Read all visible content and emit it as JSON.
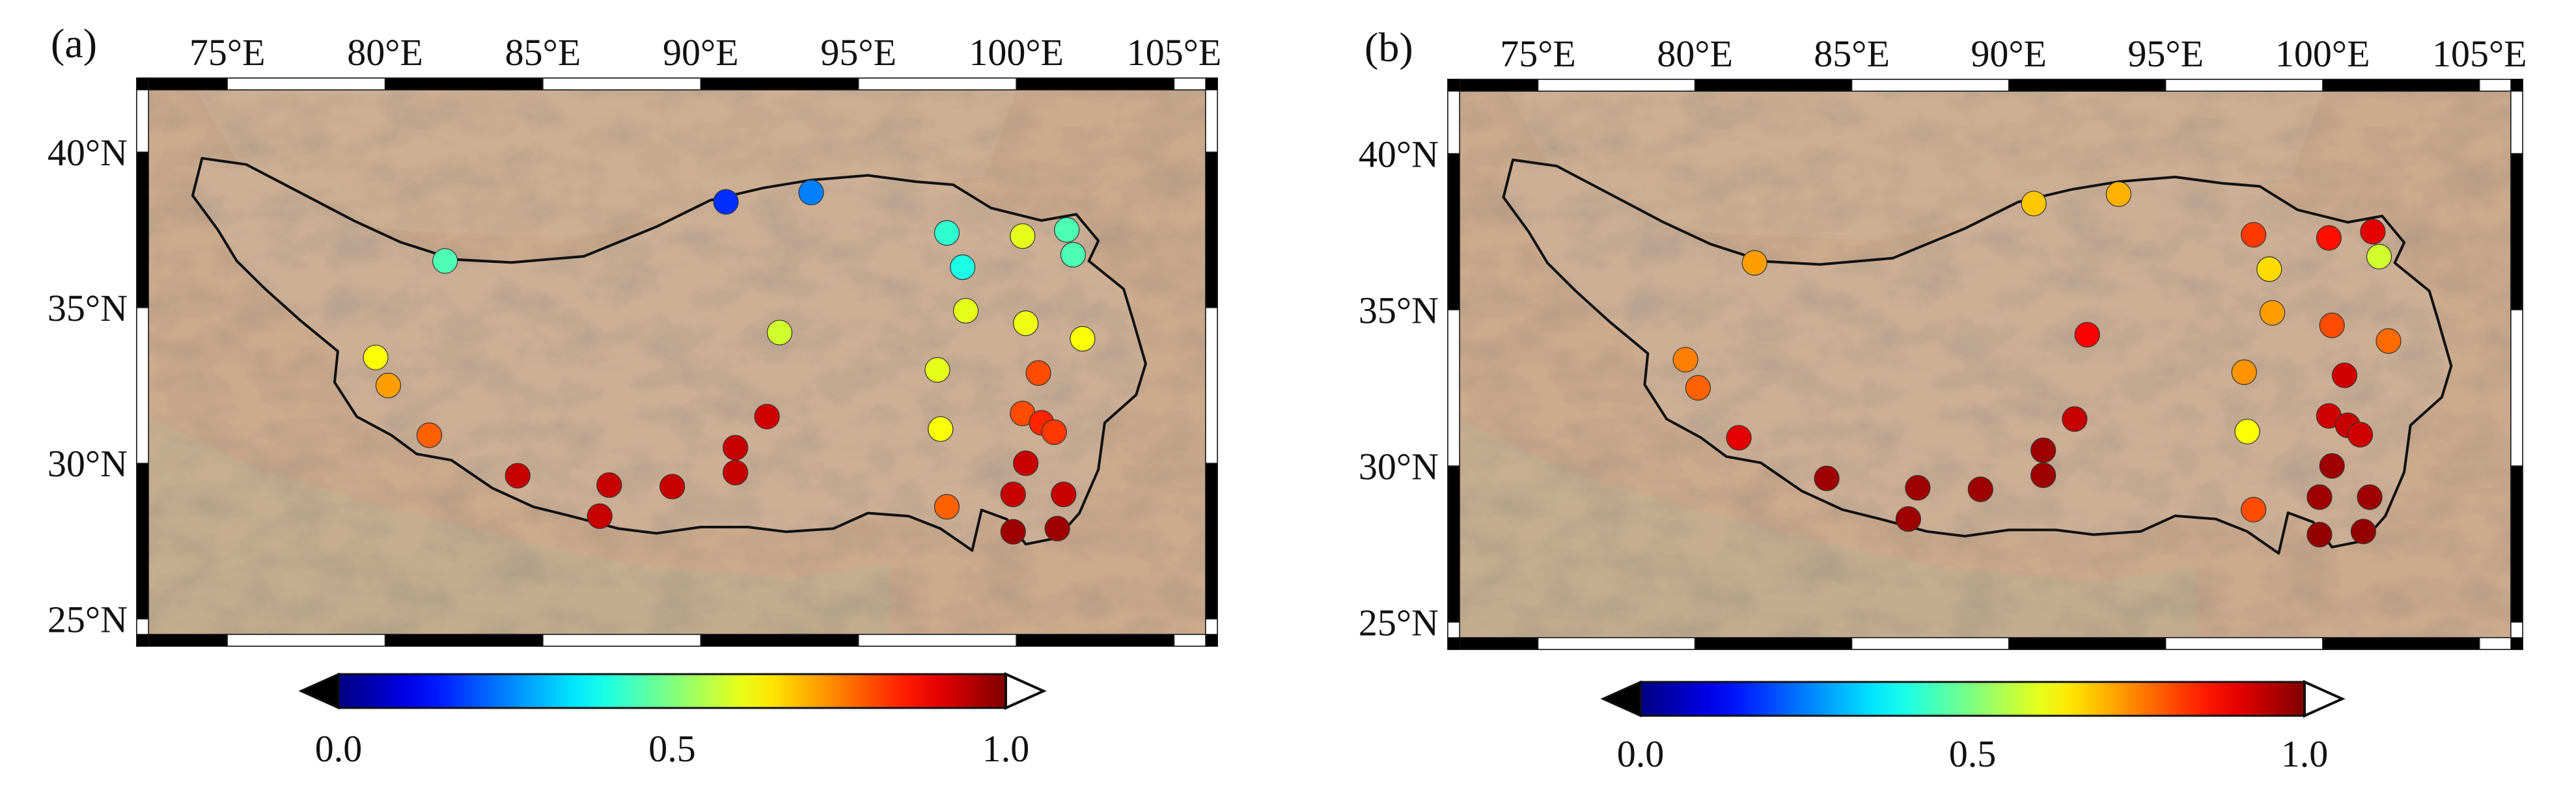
{
  "figure": {
    "panels": [
      {
        "id": "a",
        "label": "(a)",
        "lon_ticks": [
          "75°E",
          "80°E",
          "85°E",
          "90°E",
          "95°E",
          "100°E",
          "105°E"
        ],
        "lat_ticks": [
          "40°N",
          "35°N",
          "30°N",
          "25°N"
        ],
        "colorbar": {
          "min_label": "0.0",
          "mid_label": "0.5",
          "max_label": "1.0"
        }
      },
      {
        "id": "b",
        "label": "(b)",
        "lon_ticks": [
          "75°E",
          "80°E",
          "85°E",
          "90°E",
          "95°E",
          "100°E",
          "105°E"
        ],
        "lat_ticks": [
          "40°N",
          "35°N",
          "30°N",
          "25°N"
        ],
        "colorbar": {
          "min_label": "0.0",
          "mid_label": "0.5",
          "max_label": "1.0"
        }
      }
    ]
  },
  "map_data": {
    "extent": {
      "lon": [
        72.5,
        106
      ],
      "lat": [
        24.5,
        42
      ]
    },
    "lon_ticks": [
      75,
      80,
      85,
      90,
      95,
      100,
      105
    ],
    "lat_ticks": [
      40,
      35,
      30,
      25
    ],
    "colormap": "jet",
    "colorbar_range": [
      0,
      1
    ],
    "colorbar_extend": "both",
    "basemap": "shaded relief, Tibetan Plateau boundary outline",
    "boundary": [
      [
        74.2,
        39.8
      ],
      [
        75.6,
        39.6
      ],
      [
        77.3,
        38.7
      ],
      [
        79.0,
        37.8
      ],
      [
        80.5,
        37.1
      ],
      [
        82.2,
        36.55
      ],
      [
        84.0,
        36.45
      ],
      [
        86.3,
        36.65
      ],
      [
        88.6,
        37.6
      ],
      [
        90.3,
        38.45
      ],
      [
        92.0,
        38.85
      ],
      [
        93.5,
        39.1
      ],
      [
        95.3,
        39.25
      ],
      [
        96.8,
        39.05
      ],
      [
        98.0,
        38.95
      ],
      [
        99.2,
        38.2
      ],
      [
        100.8,
        37.8
      ],
      [
        101.9,
        38.0
      ],
      [
        102.6,
        37.15
      ],
      [
        102.3,
        36.5
      ],
      [
        103.4,
        35.6
      ],
      [
        103.7,
        34.6
      ],
      [
        104.1,
        33.2
      ],
      [
        103.8,
        32.2
      ],
      [
        102.8,
        31.3
      ],
      [
        102.6,
        29.8
      ],
      [
        102.0,
        28.4
      ],
      [
        101.3,
        27.6
      ],
      [
        100.3,
        27.4
      ],
      [
        99.7,
        28.2
      ],
      [
        98.9,
        28.5
      ],
      [
        98.6,
        27.2
      ],
      [
        97.6,
        27.9
      ],
      [
        96.6,
        28.3
      ],
      [
        95.3,
        28.4
      ],
      [
        94.2,
        27.9
      ],
      [
        92.7,
        27.8
      ],
      [
        91.5,
        27.95
      ],
      [
        90.0,
        27.95
      ],
      [
        88.6,
        27.75
      ],
      [
        87.4,
        27.9
      ],
      [
        85.9,
        28.3
      ],
      [
        84.7,
        28.6
      ],
      [
        83.4,
        29.2
      ],
      [
        82.1,
        30.1
      ],
      [
        81.0,
        30.3
      ],
      [
        80.2,
        30.9
      ],
      [
        79.1,
        31.5
      ],
      [
        78.4,
        32.6
      ],
      [
        78.5,
        33.6
      ],
      [
        77.3,
        34.6
      ],
      [
        76.2,
        35.6
      ],
      [
        75.3,
        36.5
      ],
      [
        74.7,
        37.5
      ],
      [
        73.9,
        38.6
      ],
      [
        74.2,
        39.8
      ]
    ],
    "stations": [
      [
        81.9,
        36.5
      ],
      [
        90.8,
        38.4
      ],
      [
        93.5,
        38.7
      ],
      [
        97.8,
        37.4
      ],
      [
        98.3,
        36.3
      ],
      [
        100.2,
        37.3
      ],
      [
        101.6,
        37.5
      ],
      [
        101.8,
        36.7
      ],
      [
        79.7,
        33.4
      ],
      [
        80.1,
        32.5
      ],
      [
        81.4,
        30.9
      ],
      [
        92.5,
        34.2
      ],
      [
        97.5,
        33.0
      ],
      [
        98.4,
        34.9
      ],
      [
        100.3,
        34.5
      ],
      [
        102.1,
        34.0
      ],
      [
        100.7,
        32.9
      ],
      [
        97.6,
        31.1
      ],
      [
        100.2,
        31.6
      ],
      [
        100.8,
        31.3
      ],
      [
        101.2,
        31.0
      ],
      [
        92.1,
        31.5
      ],
      [
        91.1,
        30.5
      ],
      [
        91.1,
        29.7
      ],
      [
        84.2,
        29.6
      ],
      [
        87.1,
        29.3
      ],
      [
        89.1,
        29.25
      ],
      [
        86.8,
        28.3
      ],
      [
        97.8,
        28.6
      ],
      [
        100.3,
        30.0
      ],
      [
        99.9,
        29.0
      ],
      [
        101.5,
        29.0
      ],
      [
        99.9,
        27.8
      ],
      [
        101.3,
        27.9
      ]
    ],
    "values_a": [
      0.45,
      0.17,
      0.25,
      0.42,
      0.4,
      0.6,
      0.45,
      0.45,
      0.62,
      0.72,
      0.78,
      0.58,
      0.6,
      0.6,
      0.61,
      0.62,
      0.8,
      0.62,
      0.8,
      0.84,
      0.82,
      0.92,
      0.93,
      0.93,
      0.93,
      0.93,
      0.93,
      0.93,
      0.78,
      0.93,
      0.93,
      0.93,
      0.97,
      0.97
    ],
    "values_b": [
      0.72,
      0.68,
      0.7,
      0.82,
      0.66,
      0.86,
      0.9,
      0.58,
      0.75,
      0.78,
      0.9,
      0.88,
      0.73,
      0.72,
      0.8,
      0.77,
      0.92,
      0.62,
      0.92,
      0.93,
      0.92,
      0.93,
      0.97,
      0.97,
      0.97,
      0.97,
      0.97,
      0.97,
      0.8,
      0.97,
      0.97,
      0.97,
      0.98,
      0.98
    ]
  }
}
